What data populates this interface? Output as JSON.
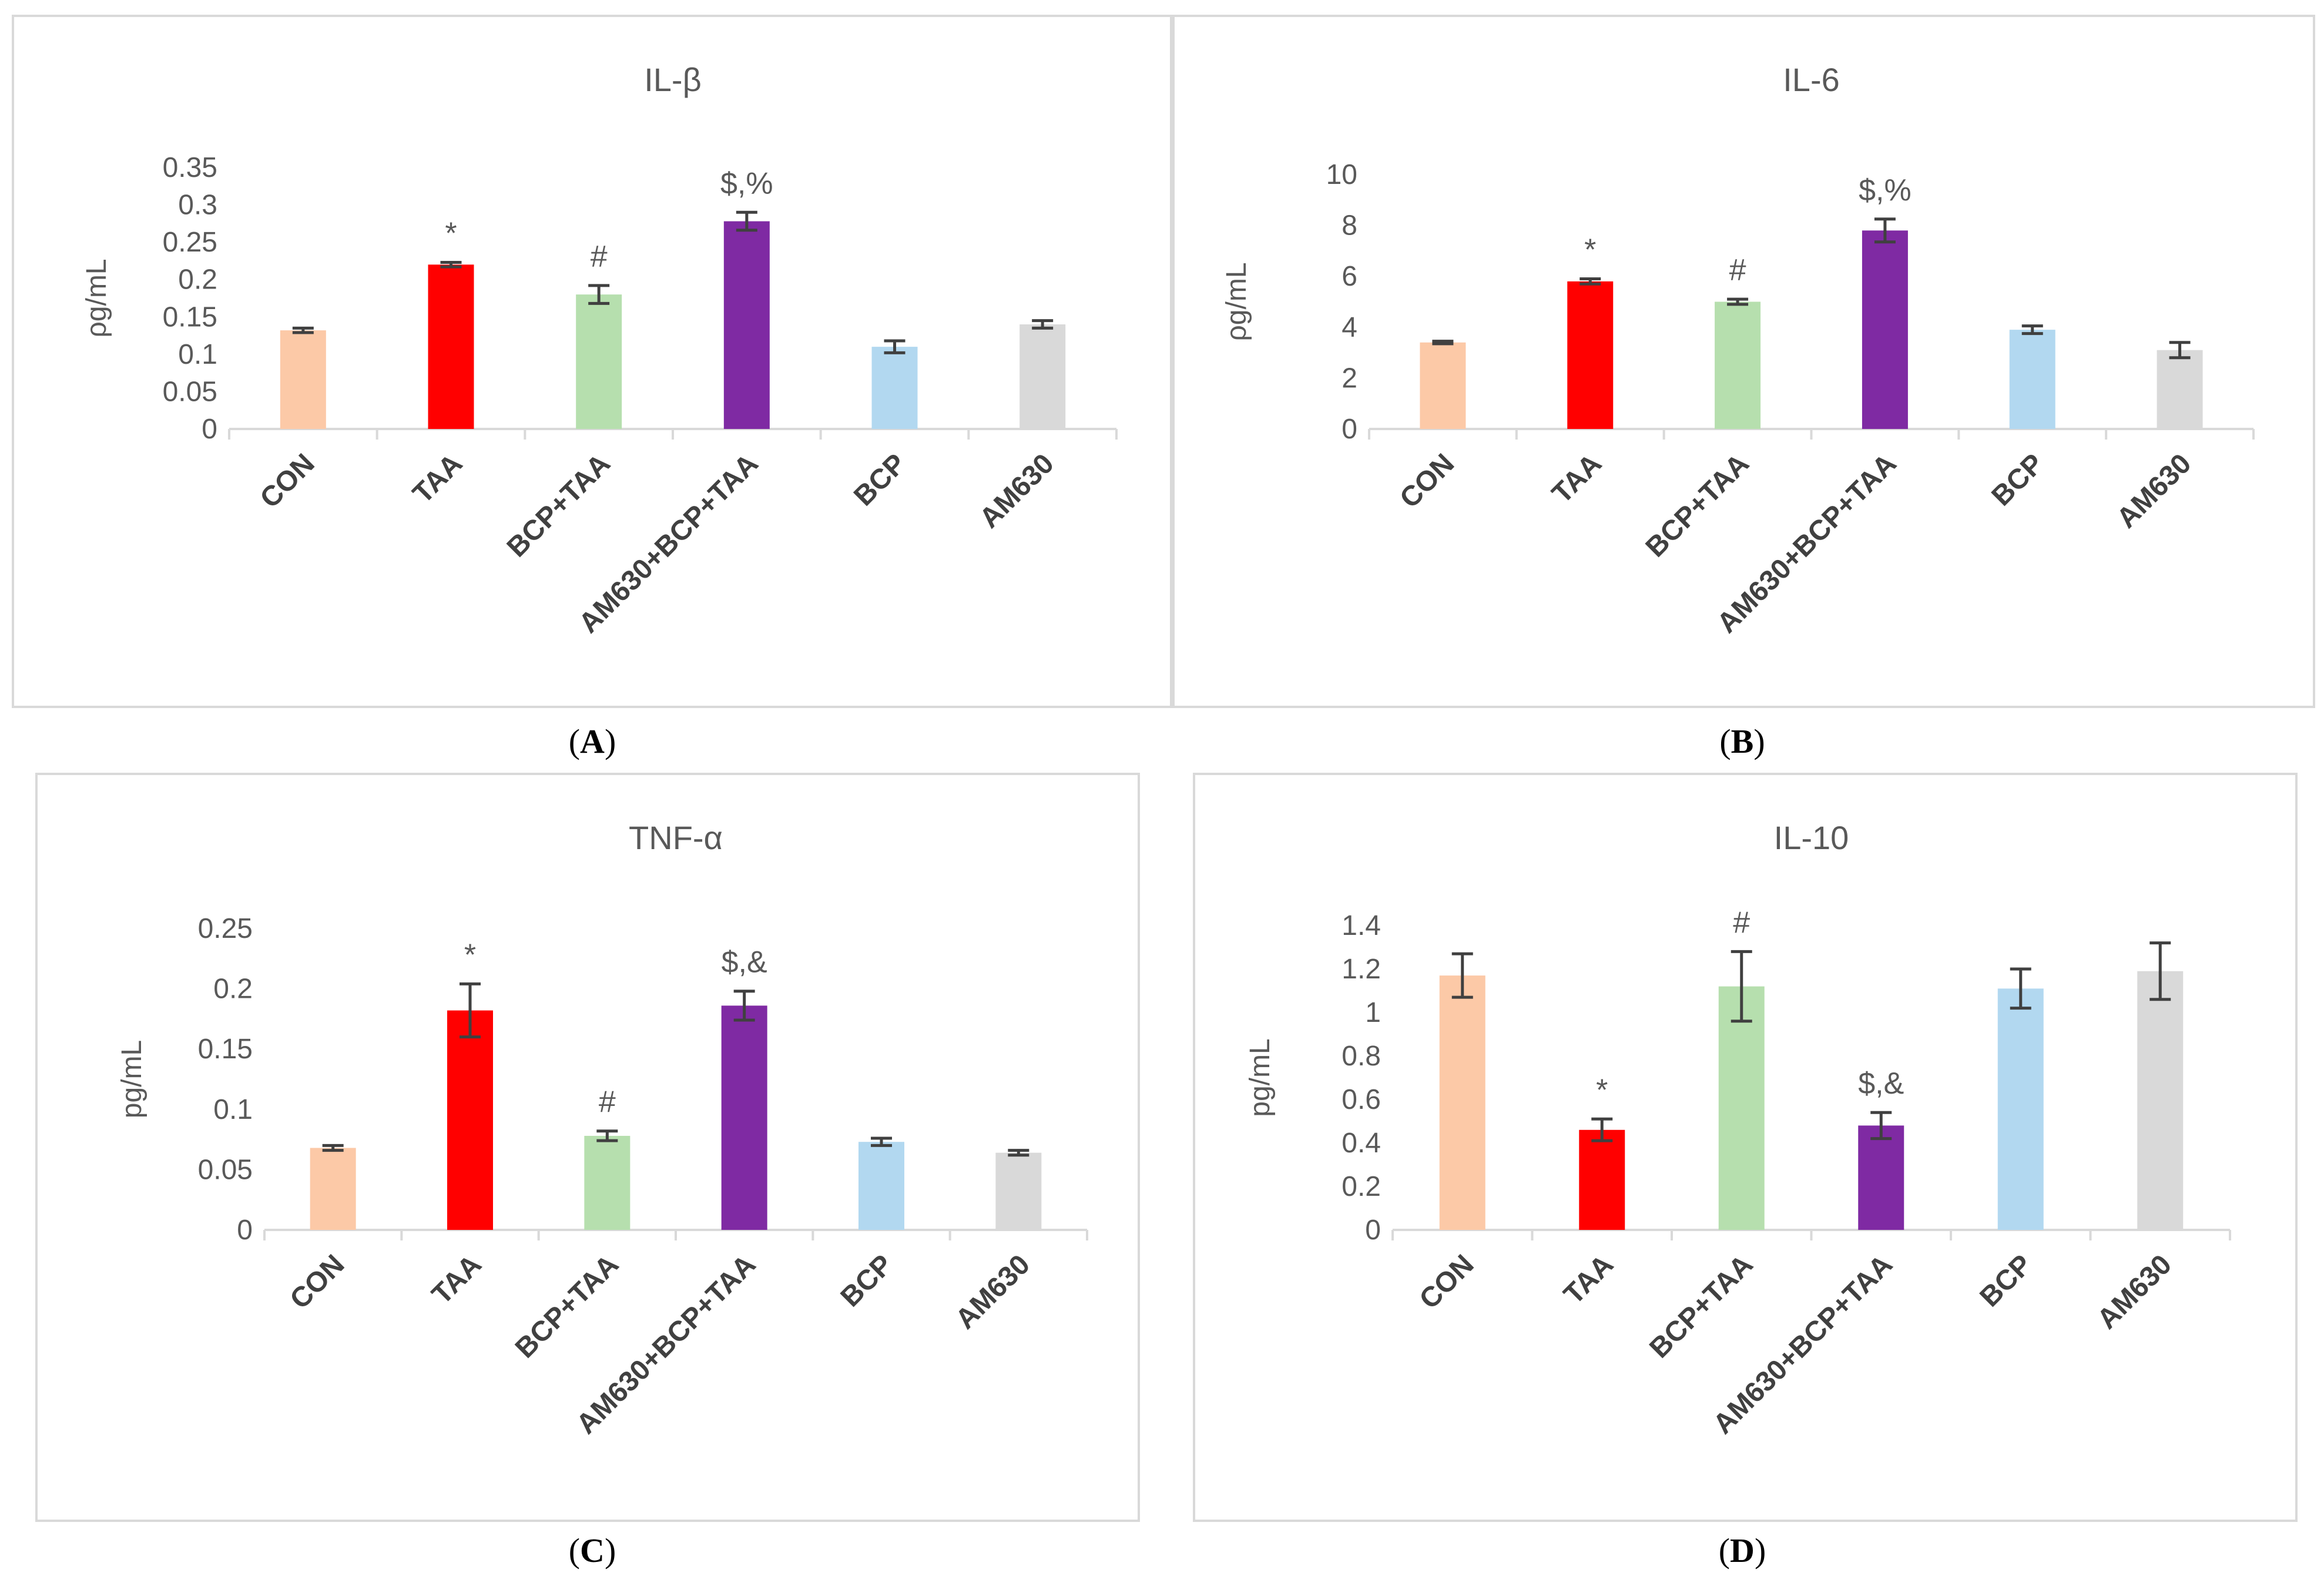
{
  "figure": {
    "panel_labels": [
      "A",
      "B",
      "C",
      "D"
    ]
  },
  "colors": {
    "CON": "#fcc9a7",
    "TAA": "#ff0000",
    "BCP+TAA": "#b6dfae",
    "AM630+BCP+TAA": "#7f2aa3",
    "BCP": "#b2d8f0",
    "AM630": "#d9d9d9",
    "axis": "#d9d9d9",
    "text": "#595959",
    "category_text": "#404040",
    "error_bar": "#404040"
  },
  "chart_data": [
    {
      "panel": "A",
      "type": "bar",
      "title": "IL-β",
      "ylabel": "ρg/mL",
      "xlabel": "",
      "categories": [
        "CON",
        "TAA",
        "BCP+TAA",
        "AM630+BCP+TAA",
        "BCP",
        "AM630"
      ],
      "values": [
        0.132,
        0.22,
        0.18,
        0.278,
        0.11,
        0.14
      ],
      "errors": [
        0.003,
        0.003,
        0.012,
        0.012,
        0.008,
        0.005
      ],
      "annotations": [
        "",
        "*",
        "#",
        "$,%",
        "",
        ""
      ],
      "yticks": [
        "0",
        "0.05",
        "0.1",
        "0.15",
        "0.2",
        "0.25",
        "0.3",
        "0.35"
      ],
      "ylim": [
        0,
        0.35
      ]
    },
    {
      "panel": "B",
      "type": "bar",
      "title": "IL-6",
      "ylabel": "ρg/mL",
      "xlabel": "",
      "categories": [
        "CON",
        "TAA",
        "BCP+TAA",
        "AM630+BCP+TAA",
        "BCP",
        "AM630"
      ],
      "values": [
        3.4,
        5.8,
        5.0,
        7.8,
        3.9,
        3.1
      ],
      "errors": [
        0.05,
        0.1,
        0.1,
        0.45,
        0.15,
        0.3
      ],
      "annotations": [
        "",
        "*",
        "#",
        "$,%",
        "",
        ""
      ],
      "yticks": [
        "0",
        "2",
        "4",
        "6",
        "8",
        "10"
      ],
      "ylim": [
        0,
        10
      ]
    },
    {
      "panel": "C",
      "type": "bar",
      "title": "TNF-α",
      "ylabel": "pg/mL",
      "xlabel": "",
      "categories": [
        "CON",
        "TAA",
        "BCP+TAA",
        "AM630+BCP+TAA",
        "BCP",
        "AM630"
      ],
      "values": [
        0.068,
        0.182,
        0.078,
        0.186,
        0.073,
        0.064
      ],
      "errors": [
        0.002,
        0.022,
        0.004,
        0.012,
        0.003,
        0.002
      ],
      "annotations": [
        "",
        "*",
        "#",
        "$,&",
        "",
        ""
      ],
      "yticks": [
        "0",
        "0.05",
        "0.1",
        "0.15",
        "0.2",
        "0.25"
      ],
      "ylim": [
        0,
        0.25
      ]
    },
    {
      "panel": "D",
      "type": "bar",
      "title": "IL-10",
      "ylabel": "pg/mL",
      "xlabel": "",
      "categories": [
        "CON",
        "TAA",
        "BCP+TAA",
        "AM630+BCP+TAA",
        "BCP",
        "AM630"
      ],
      "values": [
        1.17,
        0.46,
        1.12,
        0.48,
        1.11,
        1.19
      ],
      "errors": [
        0.1,
        0.05,
        0.16,
        0.06,
        0.09,
        0.13
      ],
      "annotations": [
        "",
        "*",
        "#",
        "$,&",
        "",
        ""
      ],
      "yticks": [
        "0",
        "0.2",
        "0.4",
        "0.6",
        "0.8",
        "1",
        "1.2",
        "1.4"
      ],
      "ylim": [
        0,
        1.4
      ]
    }
  ]
}
